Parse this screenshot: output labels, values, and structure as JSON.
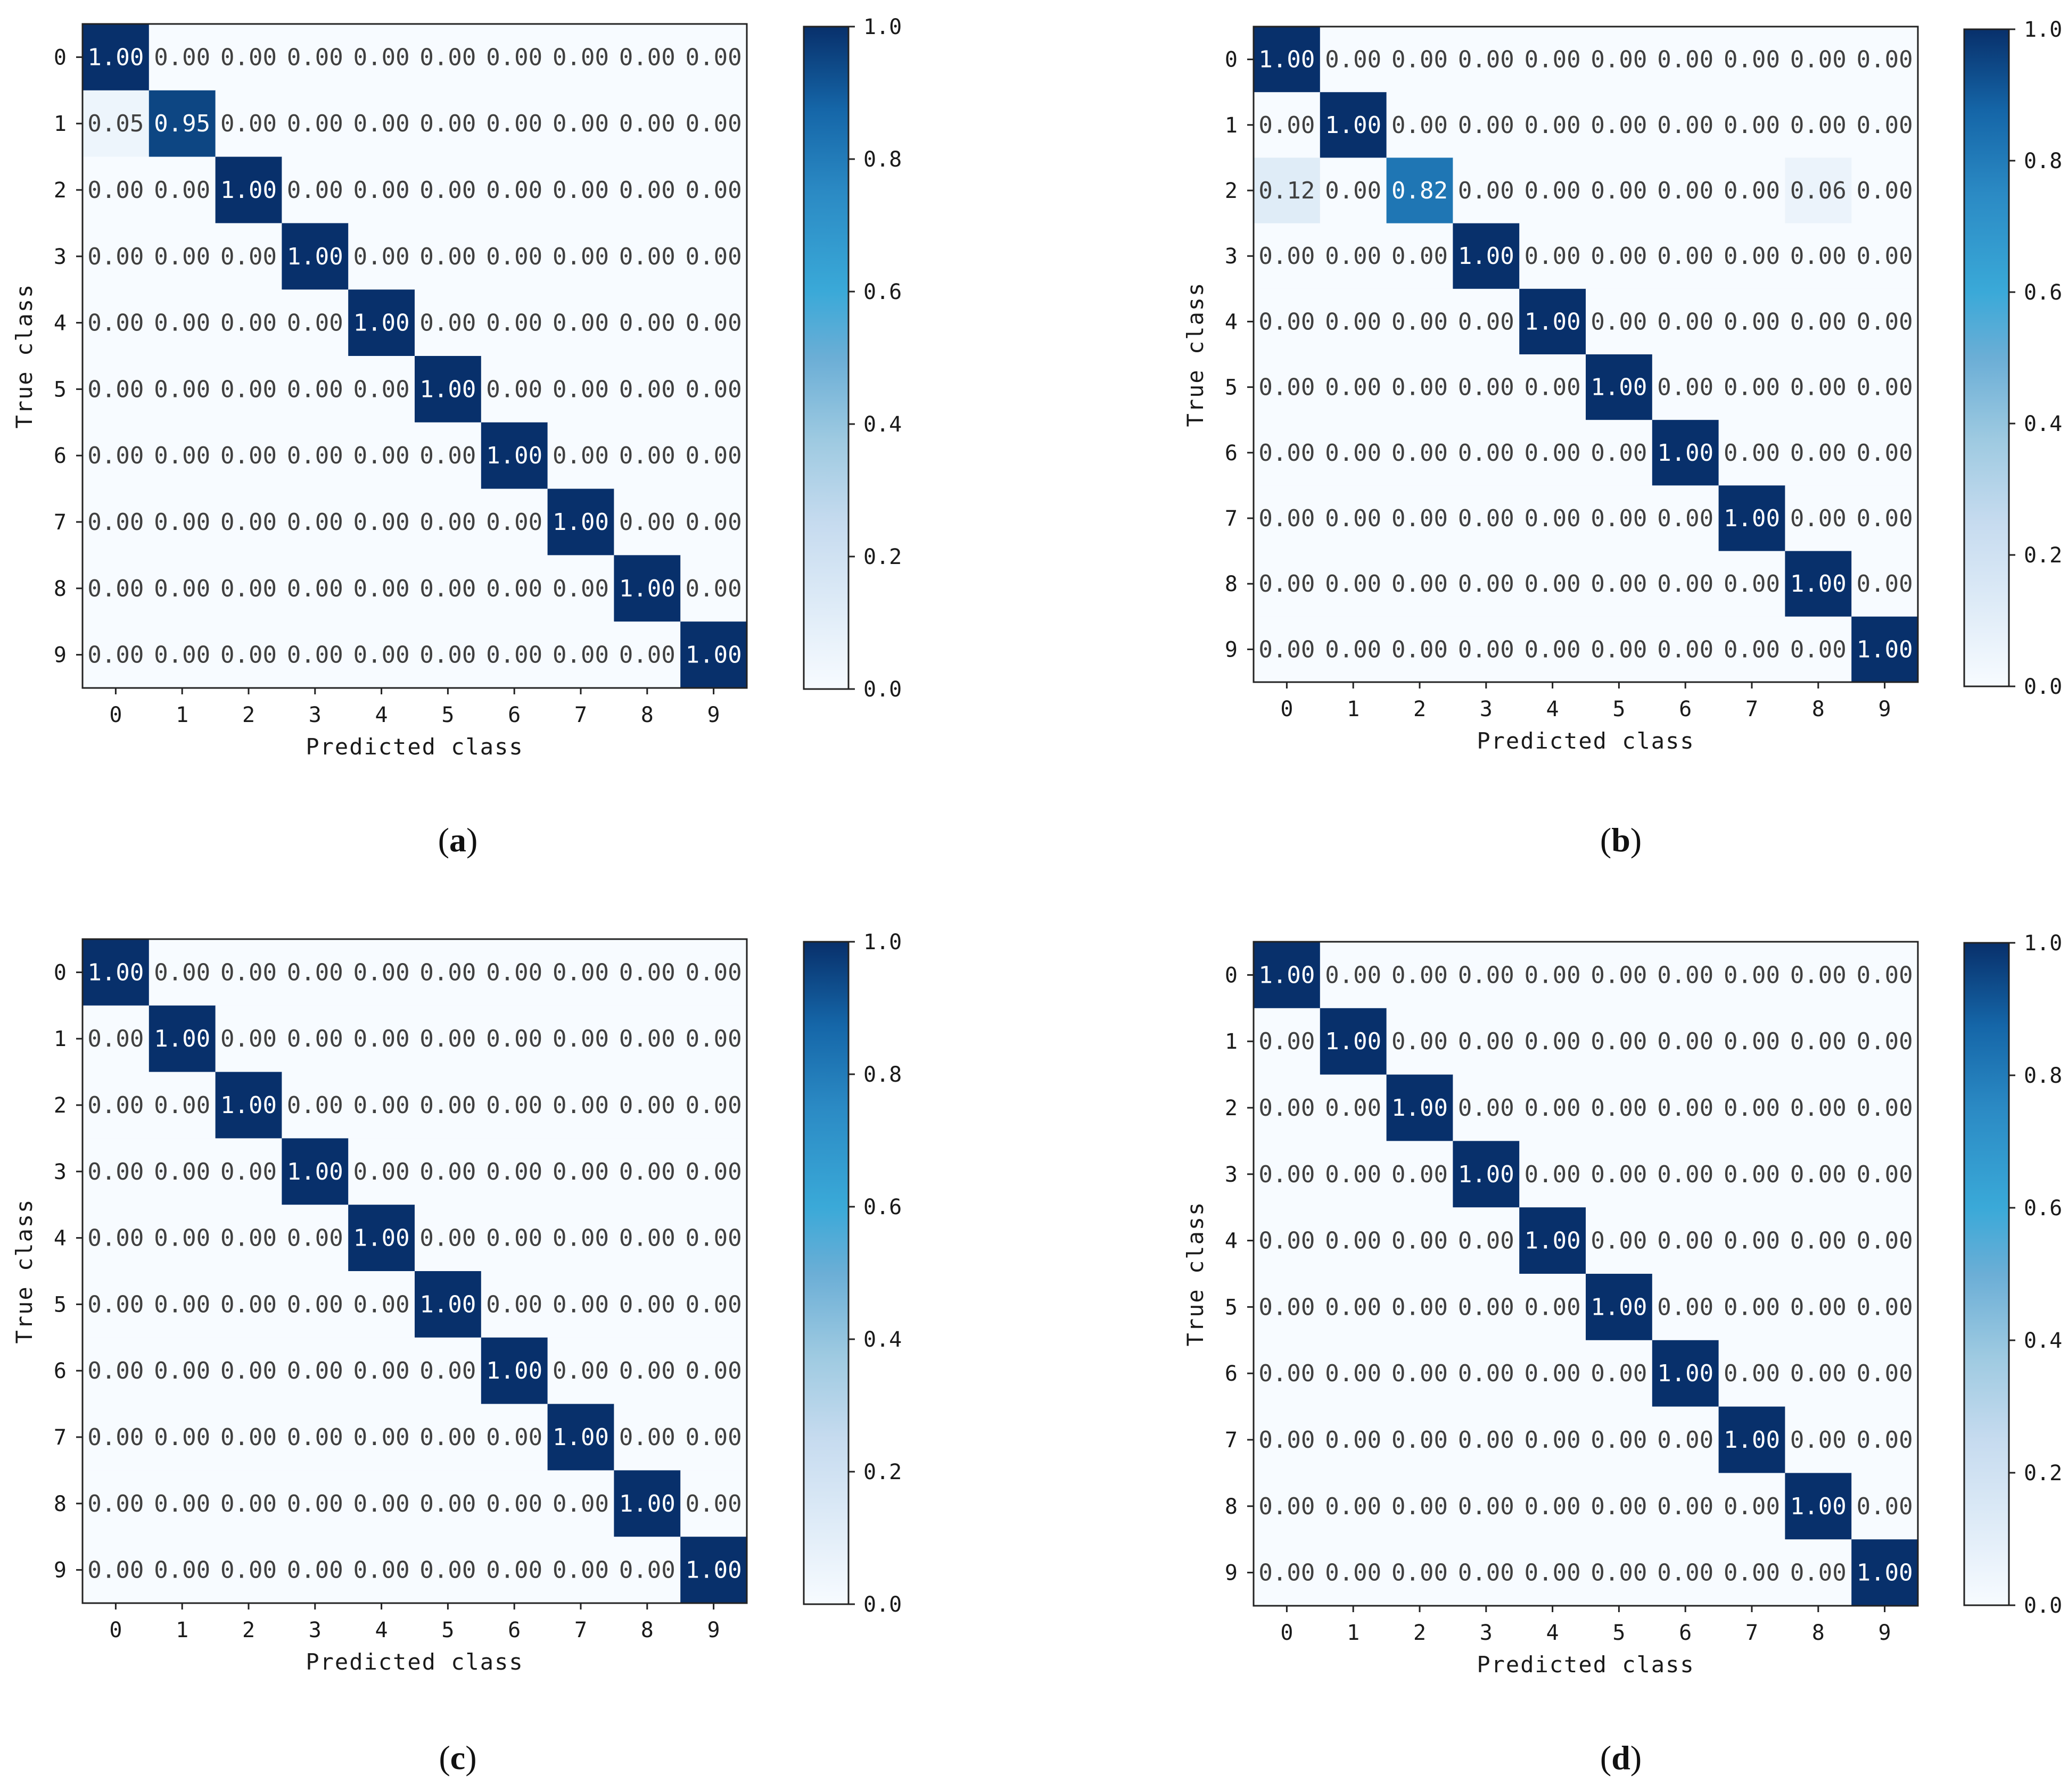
{
  "figure": {
    "panels": [
      {
        "id": "a",
        "label_open": "(",
        "label_letter": "a",
        "label_close": ")"
      },
      {
        "id": "b",
        "label_open": "(",
        "label_letter": "b",
        "label_close": ")"
      },
      {
        "id": "c",
        "label_open": "(",
        "label_letter": "c",
        "label_close": ")"
      },
      {
        "id": "d",
        "label_open": "(",
        "label_letter": "d",
        "label_close": ")"
      }
    ]
  },
  "colors": {
    "cmap": [
      "#f7fbff",
      "#deebf7",
      "#c6dbef",
      "#9ecae1",
      "#6baed6",
      "#3aa9d8",
      "#2b8ac4",
      "#1566a8",
      "#08306b"
    ],
    "text_dark": "#404040",
    "text_light": "#ffffff",
    "frame": "#222222"
  },
  "chart_data": [
    {
      "type": "heatmap",
      "panel": "a",
      "title": "",
      "xlabel": "Predicted class",
      "ylabel": "True class",
      "x_ticks": [
        "0",
        "1",
        "2",
        "3",
        "4",
        "5",
        "6",
        "7",
        "8",
        "9"
      ],
      "y_ticks": [
        "0",
        "1",
        "2",
        "3",
        "4",
        "5",
        "6",
        "7",
        "8",
        "9"
      ],
      "colorbar_ticks": [
        "0.0",
        "0.2",
        "0.4",
        "0.6",
        "0.8",
        "1.0"
      ],
      "colorbar_range": [
        0,
        1
      ],
      "matrix": [
        [
          1.0,
          0.0,
          0.0,
          0.0,
          0.0,
          0.0,
          0.0,
          0.0,
          0.0,
          0.0
        ],
        [
          0.05,
          0.95,
          0.0,
          0.0,
          0.0,
          0.0,
          0.0,
          0.0,
          0.0,
          0.0
        ],
        [
          0.0,
          0.0,
          1.0,
          0.0,
          0.0,
          0.0,
          0.0,
          0.0,
          0.0,
          0.0
        ],
        [
          0.0,
          0.0,
          0.0,
          1.0,
          0.0,
          0.0,
          0.0,
          0.0,
          0.0,
          0.0
        ],
        [
          0.0,
          0.0,
          0.0,
          0.0,
          1.0,
          0.0,
          0.0,
          0.0,
          0.0,
          0.0
        ],
        [
          0.0,
          0.0,
          0.0,
          0.0,
          0.0,
          1.0,
          0.0,
          0.0,
          0.0,
          0.0
        ],
        [
          0.0,
          0.0,
          0.0,
          0.0,
          0.0,
          0.0,
          1.0,
          0.0,
          0.0,
          0.0
        ],
        [
          0.0,
          0.0,
          0.0,
          0.0,
          0.0,
          0.0,
          0.0,
          1.0,
          0.0,
          0.0
        ],
        [
          0.0,
          0.0,
          0.0,
          0.0,
          0.0,
          0.0,
          0.0,
          0.0,
          1.0,
          0.0
        ],
        [
          0.0,
          0.0,
          0.0,
          0.0,
          0.0,
          0.0,
          0.0,
          0.0,
          0.0,
          1.0
        ]
      ]
    },
    {
      "type": "heatmap",
      "panel": "b",
      "title": "",
      "xlabel": "Predicted class",
      "ylabel": "True class",
      "x_ticks": [
        "0",
        "1",
        "2",
        "3",
        "4",
        "5",
        "6",
        "7",
        "8",
        "9"
      ],
      "y_ticks": [
        "0",
        "1",
        "2",
        "3",
        "4",
        "5",
        "6",
        "7",
        "8",
        "9"
      ],
      "colorbar_ticks": [
        "0.0",
        "0.2",
        "0.4",
        "0.6",
        "0.8",
        "1.0"
      ],
      "colorbar_range": [
        0,
        1
      ],
      "matrix": [
        [
          1.0,
          0.0,
          0.0,
          0.0,
          0.0,
          0.0,
          0.0,
          0.0,
          0.0,
          0.0
        ],
        [
          0.0,
          1.0,
          0.0,
          0.0,
          0.0,
          0.0,
          0.0,
          0.0,
          0.0,
          0.0
        ],
        [
          0.12,
          0.0,
          0.82,
          0.0,
          0.0,
          0.0,
          0.0,
          0.0,
          0.06,
          0.0
        ],
        [
          0.0,
          0.0,
          0.0,
          1.0,
          0.0,
          0.0,
          0.0,
          0.0,
          0.0,
          0.0
        ],
        [
          0.0,
          0.0,
          0.0,
          0.0,
          1.0,
          0.0,
          0.0,
          0.0,
          0.0,
          0.0
        ],
        [
          0.0,
          0.0,
          0.0,
          0.0,
          0.0,
          1.0,
          0.0,
          0.0,
          0.0,
          0.0
        ],
        [
          0.0,
          0.0,
          0.0,
          0.0,
          0.0,
          0.0,
          1.0,
          0.0,
          0.0,
          0.0
        ],
        [
          0.0,
          0.0,
          0.0,
          0.0,
          0.0,
          0.0,
          0.0,
          1.0,
          0.0,
          0.0
        ],
        [
          0.0,
          0.0,
          0.0,
          0.0,
          0.0,
          0.0,
          0.0,
          0.0,
          1.0,
          0.0
        ],
        [
          0.0,
          0.0,
          0.0,
          0.0,
          0.0,
          0.0,
          0.0,
          0.0,
          0.0,
          1.0
        ]
      ]
    },
    {
      "type": "heatmap",
      "panel": "c",
      "title": "",
      "xlabel": "Predicted class",
      "ylabel": "True class",
      "x_ticks": [
        "0",
        "1",
        "2",
        "3",
        "4",
        "5",
        "6",
        "7",
        "8",
        "9"
      ],
      "y_ticks": [
        "0",
        "1",
        "2",
        "3",
        "4",
        "5",
        "6",
        "7",
        "8",
        "9"
      ],
      "colorbar_ticks": [
        "0.0",
        "0.2",
        "0.4",
        "0.6",
        "0.8",
        "1.0"
      ],
      "colorbar_range": [
        0,
        1
      ],
      "matrix": [
        [
          1.0,
          0.0,
          0.0,
          0.0,
          0.0,
          0.0,
          0.0,
          0.0,
          0.0,
          0.0
        ],
        [
          0.0,
          1.0,
          0.0,
          0.0,
          0.0,
          0.0,
          0.0,
          0.0,
          0.0,
          0.0
        ],
        [
          0.0,
          0.0,
          1.0,
          0.0,
          0.0,
          0.0,
          0.0,
          0.0,
          0.0,
          0.0
        ],
        [
          0.0,
          0.0,
          0.0,
          1.0,
          0.0,
          0.0,
          0.0,
          0.0,
          0.0,
          0.0
        ],
        [
          0.0,
          0.0,
          0.0,
          0.0,
          1.0,
          0.0,
          0.0,
          0.0,
          0.0,
          0.0
        ],
        [
          0.0,
          0.0,
          0.0,
          0.0,
          0.0,
          1.0,
          0.0,
          0.0,
          0.0,
          0.0
        ],
        [
          0.0,
          0.0,
          0.0,
          0.0,
          0.0,
          0.0,
          1.0,
          0.0,
          0.0,
          0.0
        ],
        [
          0.0,
          0.0,
          0.0,
          0.0,
          0.0,
          0.0,
          0.0,
          1.0,
          0.0,
          0.0
        ],
        [
          0.0,
          0.0,
          0.0,
          0.0,
          0.0,
          0.0,
          0.0,
          0.0,
          1.0,
          0.0
        ],
        [
          0.0,
          0.0,
          0.0,
          0.0,
          0.0,
          0.0,
          0.0,
          0.0,
          0.0,
          1.0
        ]
      ]
    },
    {
      "type": "heatmap",
      "panel": "d",
      "title": "",
      "xlabel": "Predicted class",
      "ylabel": "True class",
      "x_ticks": [
        "0",
        "1",
        "2",
        "3",
        "4",
        "5",
        "6",
        "7",
        "8",
        "9"
      ],
      "y_ticks": [
        "0",
        "1",
        "2",
        "3",
        "4",
        "5",
        "6",
        "7",
        "8",
        "9"
      ],
      "colorbar_ticks": [
        "0.0",
        "0.2",
        "0.4",
        "0.6",
        "0.8",
        "1.0"
      ],
      "colorbar_range": [
        0,
        1
      ],
      "matrix": [
        [
          1.0,
          0.0,
          0.0,
          0.0,
          0.0,
          0.0,
          0.0,
          0.0,
          0.0,
          0.0
        ],
        [
          0.0,
          1.0,
          0.0,
          0.0,
          0.0,
          0.0,
          0.0,
          0.0,
          0.0,
          0.0
        ],
        [
          0.0,
          0.0,
          1.0,
          0.0,
          0.0,
          0.0,
          0.0,
          0.0,
          0.0,
          0.0
        ],
        [
          0.0,
          0.0,
          0.0,
          1.0,
          0.0,
          0.0,
          0.0,
          0.0,
          0.0,
          0.0
        ],
        [
          0.0,
          0.0,
          0.0,
          0.0,
          1.0,
          0.0,
          0.0,
          0.0,
          0.0,
          0.0
        ],
        [
          0.0,
          0.0,
          0.0,
          0.0,
          0.0,
          1.0,
          0.0,
          0.0,
          0.0,
          0.0
        ],
        [
          0.0,
          0.0,
          0.0,
          0.0,
          0.0,
          0.0,
          1.0,
          0.0,
          0.0,
          0.0
        ],
        [
          0.0,
          0.0,
          0.0,
          0.0,
          0.0,
          0.0,
          0.0,
          1.0,
          0.0,
          0.0
        ],
        [
          0.0,
          0.0,
          0.0,
          0.0,
          0.0,
          0.0,
          0.0,
          0.0,
          1.0,
          0.0
        ],
        [
          0.0,
          0.0,
          0.0,
          0.0,
          0.0,
          0.0,
          0.0,
          0.0,
          0.0,
          1.0
        ]
      ]
    }
  ]
}
